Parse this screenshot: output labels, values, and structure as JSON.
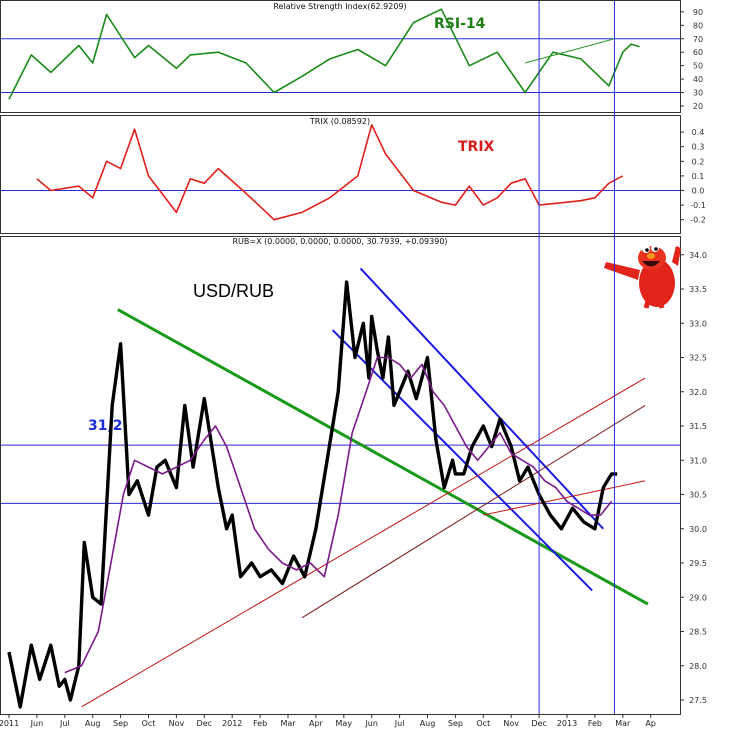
{
  "chart_data": [
    {
      "type": "line",
      "panel": "rsi",
      "title": "Relative Strength Index(62.9209)",
      "tag": "RSI-14",
      "tag_color": "#1e7d14",
      "line_color": "#1a8a1a",
      "ylim": [
        20,
        100
      ],
      "yticks": [
        20,
        30,
        40,
        50,
        60,
        70,
        80,
        90
      ],
      "hlines": [
        30,
        70
      ],
      "x": [
        0,
        0.8,
        1.5,
        2.5,
        3.0,
        3.5,
        4.5,
        5.0,
        6.0,
        6.5,
        7.5,
        8.5,
        9.5,
        10.5,
        11.5,
        12.5,
        13.5,
        14.5,
        15.5,
        16.5,
        17.5,
        18.5,
        19.5,
        20.5,
        21.5,
        22.0,
        22.3,
        22.6
      ],
      "values": [
        25,
        58,
        45,
        65,
        52,
        88,
        56,
        65,
        48,
        58,
        60,
        52,
        30,
        42,
        55,
        62,
        50,
        82,
        92,
        50,
        60,
        30,
        60,
        55,
        35,
        60,
        66,
        64
      ],
      "trend": {
        "x": [
          18.5,
          21.7
        ],
        "y": [
          52,
          70
        ]
      }
    },
    {
      "type": "line",
      "panel": "trix",
      "title": "TRIX (0.08592)",
      "tag": "TRIX",
      "tag_color": "#d81b1b",
      "line_color": "#e0201a",
      "ylim": [
        -0.3,
        0.5
      ],
      "yticks": [
        -0.2,
        -0.1,
        0.0,
        0.1,
        0.2,
        0.3,
        0.4
      ],
      "hlines": [
        0.0
      ],
      "x": [
        1.0,
        1.5,
        2.5,
        3.0,
        3.5,
        4.0,
        4.5,
        5.0,
        6.0,
        6.5,
        7.0,
        7.5,
        8.5,
        9.5,
        10.5,
        11.5,
        12.5,
        13.0,
        13.5,
        14.5,
        15.5,
        16.0,
        16.5,
        17.0,
        17.5,
        18.0,
        18.5,
        19.0,
        20.0,
        20.5,
        21.0,
        21.5,
        22.0
      ],
      "values": [
        0.08,
        0.0,
        0.03,
        -0.05,
        0.2,
        0.15,
        0.42,
        0.1,
        -0.15,
        0.08,
        0.05,
        0.15,
        -0.02,
        -0.2,
        -0.15,
        -0.05,
        0.1,
        0.45,
        0.25,
        0.0,
        -0.08,
        -0.1,
        0.03,
        -0.1,
        -0.05,
        0.05,
        0.08,
        -0.1,
        -0.08,
        -0.07,
        -0.05,
        0.05,
        0.1
      ]
    },
    {
      "type": "line",
      "panel": "price",
      "title": "RUB=X (0.0000, 0.0000, 0.0000, 30.7939, +0.09390)",
      "heading": "USD/RUB",
      "level_label": "31,2",
      "level_label_color": "#1a2dd8",
      "ylim": [
        27.2,
        34.3
      ],
      "yticks": [
        27.5,
        28.0,
        28.5,
        29.0,
        29.5,
        30.0,
        30.5,
        31.0,
        31.5,
        32.0,
        32.5,
        33.0,
        33.5,
        34.0
      ],
      "hlines": [
        31.22,
        30.37
      ],
      "xticks": [
        "2011",
        "Jun",
        "Jul",
        "Aug",
        "Sep",
        "Oct",
        "Nov",
        "Dec",
        "2012",
        "Feb",
        "Mar",
        "Apr",
        "May",
        "Jun",
        "Jul",
        "Aug",
        "Sep",
        "Oct",
        "Nov",
        "Dec",
        "2013",
        "Feb",
        "Mar",
        "Ap"
      ],
      "vlines": [
        19.0,
        21.7
      ],
      "series": [
        {
          "name": "RUB=X",
          "color": "#000000",
          "x": [
            0,
            0.4,
            0.8,
            1.1,
            1.5,
            1.8,
            2.0,
            2.2,
            2.5,
            2.7,
            3.0,
            3.3,
            3.7,
            4.0,
            4.3,
            4.6,
            5.0,
            5.3,
            5.6,
            6.0,
            6.3,
            6.6,
            7.0,
            7.5,
            7.8,
            8.0,
            8.3,
            8.7,
            9.0,
            9.4,
            9.8,
            10.2,
            10.6,
            11.0,
            11.4,
            11.8,
            12.1,
            12.4,
            12.7,
            12.9,
            13.0,
            13.2,
            13.4,
            13.6,
            13.8,
            14.0,
            14.3,
            14.6,
            15.0,
            15.3,
            15.6,
            15.9,
            16.0,
            16.3,
            16.6,
            17.0,
            17.3,
            17.6,
            18.0,
            18.3,
            18.6,
            19.0,
            19.4,
            19.8,
            20.2,
            20.6,
            21.0,
            21.3,
            21.6,
            21.8
          ],
          "values": [
            28.2,
            27.4,
            28.3,
            27.8,
            28.3,
            27.7,
            27.8,
            27.5,
            28.0,
            29.8,
            29.0,
            28.9,
            31.8,
            32.7,
            30.5,
            30.7,
            30.2,
            30.9,
            31.0,
            30.6,
            31.8,
            30.9,
            31.9,
            30.6,
            30.0,
            30.2,
            29.3,
            29.5,
            29.3,
            29.4,
            29.2,
            29.6,
            29.3,
            30.0,
            31.0,
            32.0,
            33.6,
            32.5,
            33.0,
            32.2,
            33.1,
            32.6,
            32.2,
            32.8,
            31.8,
            32.0,
            32.3,
            31.9,
            32.5,
            31.3,
            30.6,
            31.0,
            30.8,
            30.8,
            31.2,
            31.5,
            31.2,
            31.6,
            31.2,
            30.7,
            30.9,
            30.5,
            30.2,
            30.0,
            30.3,
            30.1,
            30.0,
            30.6,
            30.8,
            30.8
          ]
        },
        {
          "name": "MA",
          "color": "#7a1a8a",
          "x": [
            2.0,
            2.6,
            3.2,
            3.7,
            4.1,
            4.5,
            5.0,
            5.5,
            6.0,
            6.5,
            7.0,
            7.4,
            7.8,
            8.3,
            8.8,
            9.3,
            9.8,
            10.3,
            10.8,
            11.3,
            11.8,
            12.3,
            12.8,
            13.2,
            13.6,
            14.0,
            14.4,
            14.8,
            15.2,
            15.6,
            16.0,
            16.4,
            16.8,
            17.2,
            17.6,
            18.0,
            18.4,
            18.8,
            19.2,
            19.6,
            20.0,
            20.4,
            20.8,
            21.2,
            21.6
          ],
          "values": [
            27.9,
            28.0,
            28.5,
            29.6,
            30.5,
            31.0,
            30.9,
            30.8,
            30.9,
            31.0,
            31.3,
            31.5,
            31.2,
            30.6,
            30.0,
            29.7,
            29.5,
            29.4,
            29.5,
            29.3,
            30.2,
            31.4,
            32.0,
            32.5,
            32.5,
            32.4,
            32.2,
            32.4,
            32.0,
            31.8,
            31.5,
            31.2,
            31.0,
            31.2,
            31.4,
            31.1,
            31.0,
            30.9,
            30.7,
            30.6,
            30.4,
            30.3,
            30.2,
            30.2,
            30.4
          ]
        }
      ],
      "trendlines": [
        {
          "color": "#1a9a1a",
          "x": [
            3.9,
            22.9
          ],
          "y": [
            33.2,
            28.9
          ]
        },
        {
          "color": "#1a1ae0",
          "x": [
            12.6,
            21.3
          ],
          "y": [
            33.8,
            30.0
          ]
        },
        {
          "color": "#1a1ae0",
          "x": [
            11.6,
            20.9
          ],
          "y": [
            32.9,
            29.1
          ]
        },
        {
          "color": "#c41616",
          "x": [
            2.6,
            22.8
          ],
          "y": [
            27.4,
            32.2
          ]
        },
        {
          "color": "#7a1515",
          "x": [
            10.5,
            22.8
          ],
          "y": [
            28.7,
            31.8
          ]
        },
        {
          "color": "#c41616",
          "x": [
            17.0,
            22.8
          ],
          "y": [
            30.2,
            30.7
          ]
        }
      ]
    }
  ]
}
